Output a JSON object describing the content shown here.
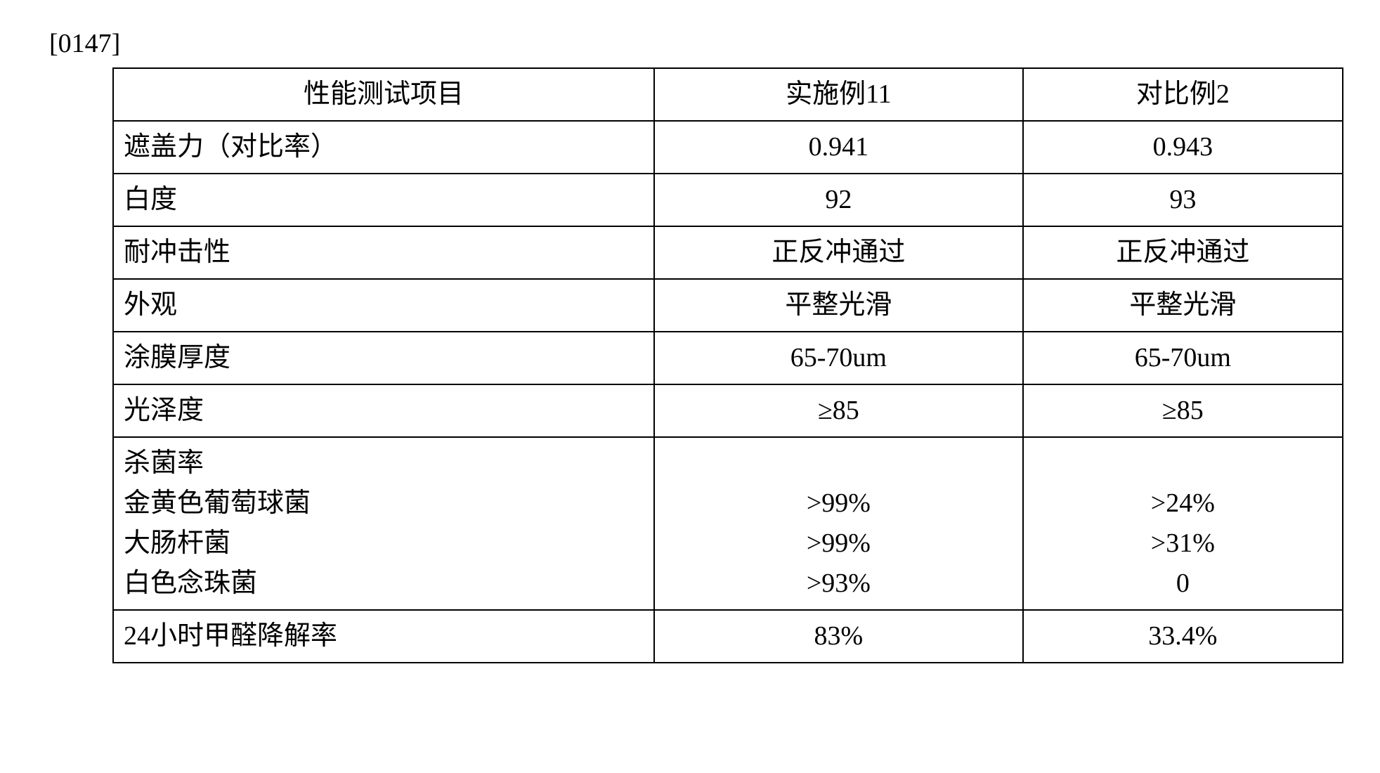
{
  "paragraph_number": "[0147]",
  "table": {
    "columns": {
      "label": "性能测试项目",
      "v1": "实施例11",
      "v2": "对比例2"
    },
    "rows": [
      {
        "label": "遮盖力（对比率）",
        "v1": "0.941",
        "v2": "0.943"
      },
      {
        "label": "白度",
        "v1": "92",
        "v2": "93"
      },
      {
        "label": "耐冲击性",
        "v1": "正反冲通过",
        "v2": "正反冲通过"
      },
      {
        "label": "外观",
        "v1": "平整光滑",
        "v2": "平整光滑"
      },
      {
        "label": "涂膜厚度",
        "v1": "65-70um",
        "v2": "65-70um"
      },
      {
        "label": "光泽度",
        "v1": "≥85",
        "v2": "≥85"
      },
      {
        "label": "杀菌率\n金黄色葡萄球菌\n大肠杆菌\n白色念珠菌",
        "v1": "\n>99%\n>99%\n>93%",
        "v2": "\n>24%\n>31%\n0"
      },
      {
        "label": "24小时甲醛降解率",
        "v1": "83%",
        "v2": "33.4%"
      }
    ]
  }
}
